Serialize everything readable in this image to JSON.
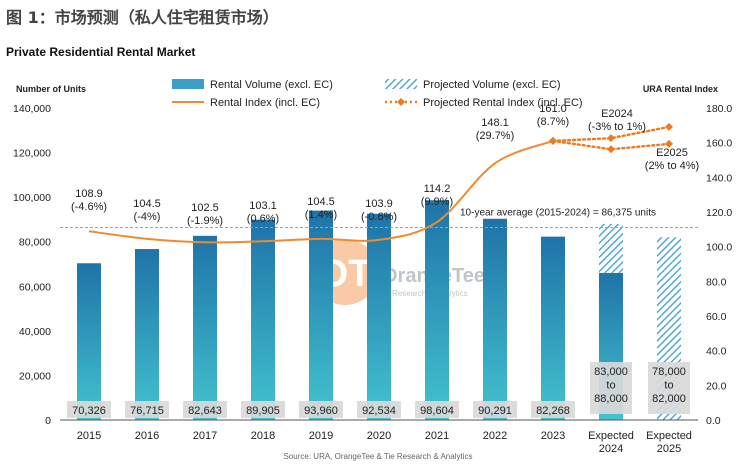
{
  "figure_title": "图 1：市场预测（私人住宅租赁市场）",
  "source": "Source: URA, OrangeTee & Tie Research & Analytics",
  "logo": {
    "name": "OrangeTee",
    "tagline": "Research & Analytics"
  },
  "colors": {
    "bar": "#3aa0c6",
    "bar_dark": "#1f73a8",
    "line": "#f08a2c",
    "projected_line": "#ee7a1e",
    "avg_line": "#9aa3ad",
    "label_box": "#d9d9d9"
  },
  "chart_data": {
    "type": "bar",
    "title": "Private Residential Rental Market",
    "ylabel_left": "Number of Units",
    "ylabel_right": "URA Rental Index",
    "ylim_left": [
      0,
      140000
    ],
    "ylim_right": [
      0,
      180
    ],
    "yticks_left": [
      "0",
      "20,000",
      "40,000",
      "60,000",
      "80,000",
      "100,000",
      "120,000",
      "140,000"
    ],
    "yticks_right": [
      "0.0",
      "20.0",
      "40.0",
      "60.0",
      "80.0",
      "100.0",
      "120.0",
      "140.0",
      "160.0",
      "180.0"
    ],
    "categories": [
      "2015",
      "2016",
      "2017",
      "2018",
      "2019",
      "2020",
      "2021",
      "2022",
      "2023",
      "Expected\n2024",
      "Expected\n2025"
    ],
    "legend": {
      "bar": "Rental Volume (excl. EC)",
      "line": "Rental Index (incl. EC)",
      "projected_bar": "Projected Volume (excl. EC)",
      "projected_line": "Projected Rental Index (incl. EC)"
    },
    "rental_volume": [
      70326,
      76715,
      82643,
      89905,
      93960,
      92534,
      98604,
      90291,
      82268,
      null,
      null
    ],
    "volume_labels": [
      "70,326",
      "76,715",
      "82,643",
      "89,905",
      "93,960",
      "92,534",
      "98,604",
      "90,291",
      "82,268",
      "83,000\nto\n88,000",
      "78,000\nto\n82,000"
    ],
    "projected_volume": {
      "2024": [
        83000,
        88000
      ],
      "2025": [
        78000,
        82000
      ]
    },
    "rental_index": [
      108.9,
      104.5,
      102.5,
      103.1,
      104.5,
      103.9,
      114.2,
      148.1,
      161.0
    ],
    "index_labels": [
      "108.9\n(-4.6%)",
      "104.5\n(-4%)",
      "102.5\n(-1.9%)",
      "103.1\n(0.6%)",
      "104.5\n(1.4%)",
      "103.9\n(-0.6%)",
      "114.2\n(9.9%)",
      "148.1\n(29.7%)",
      "161.0\n(8.7%)"
    ],
    "projected_index": {
      "E2024": [
        156.2,
        162.6
      ],
      "E2025": [
        159.3,
        169.1
      ]
    },
    "projected_index_labels": {
      "E2024": "E2024\n(-3% to 1%)",
      "E2025": "E2025\n(2% to 4%)"
    },
    "average": {
      "value": 86375,
      "label": "10-year average (2015-2024) = 86,375 units"
    }
  }
}
